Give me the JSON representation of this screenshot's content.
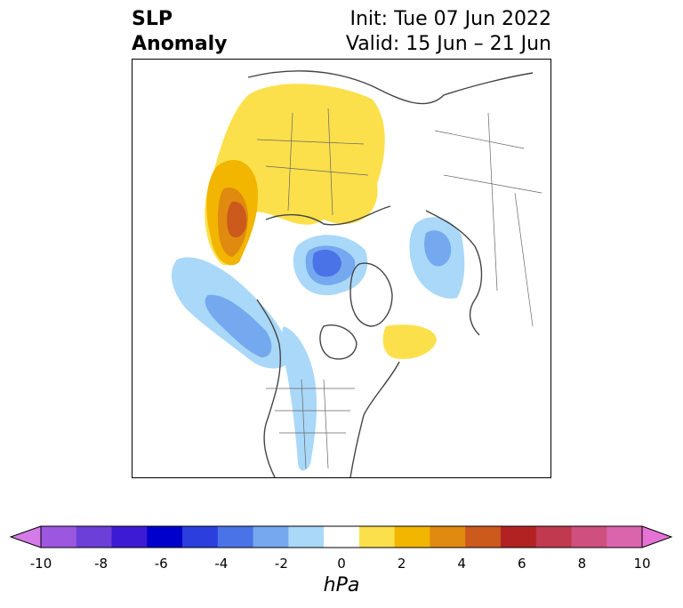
{
  "title": {
    "left_line1": "SLP",
    "left_line2": "Anomaly",
    "right_line1": "Init: Tue 07 Jun 2022",
    "right_line2": "Valid: 15 Jun – 21 Jun"
  },
  "colorbar": {
    "unit": "hPa",
    "ticks": [
      "-10",
      "-8",
      "-6",
      "-4",
      "-2",
      "0",
      "2",
      "4",
      "6",
      "8",
      "10"
    ],
    "extend": "both",
    "colors": [
      "#d57be9",
      "#9b57e0",
      "#6b3fd8",
      "#3d1bd4",
      "#0000cc",
      "#2a3fdd",
      "#4b73e8",
      "#74a9f0",
      "#aad8f8",
      "#ffffff",
      "#fbe04b",
      "#f2b500",
      "#e08a10",
      "#cc5a1c",
      "#b22222",
      "#c1394e",
      "#cf4f7e",
      "#db65ad",
      "#e573d6"
    ]
  },
  "map": {
    "projection": "polar-stereographic",
    "region": "North America / Arctic / Eurasia",
    "anomalies": [
      {
        "region": "Siberia / northeast Asia",
        "sign": "positive",
        "max_hPa": 5
      },
      {
        "region": "Arctic Ocean (north of Beaufort)",
        "sign": "negative",
        "min_hPa": -4
      },
      {
        "region": "Scandinavia",
        "sign": "negative",
        "min_hPa": -2
      },
      {
        "region": "Northeast Pacific / western North America",
        "sign": "negative",
        "min_hPa": -3
      },
      {
        "region": "Labrador Sea / Greenland south",
        "sign": "positive",
        "max_hPa": 2
      }
    ]
  }
}
